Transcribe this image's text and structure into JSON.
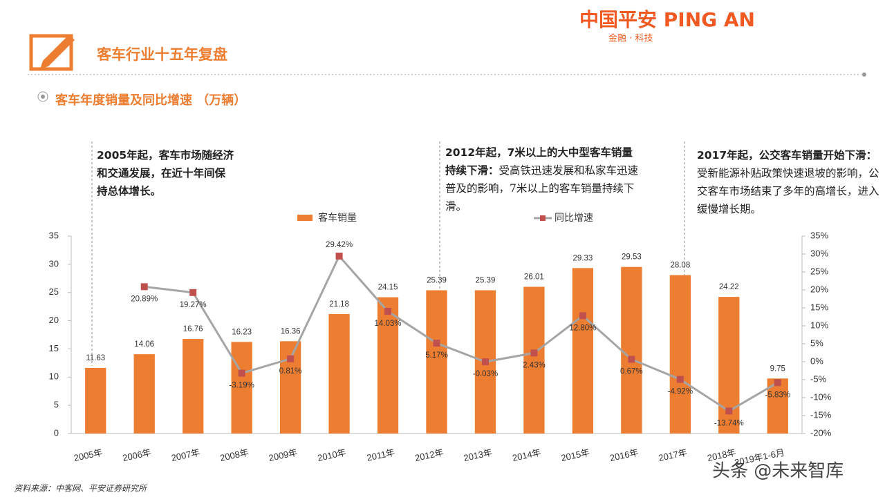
{
  "header": {
    "title": "客车行业十五年复盘",
    "logo": "中国平安 PING AN",
    "logo_sub": "金融 · 科技"
  },
  "subtitle": "客车年度销量及同比增速 （万辆）",
  "annotations": [
    {
      "bold": "2005年起，客车市场随经济和交通发展，在近十年间保持总体增长。"
    },
    {
      "bold": "2012年起，7米以上的大中型客车销量持续下滑：",
      "text": "受高铁迅速发展和私家车迅速普及的影响，7米以上的客车销量持续下滑。"
    },
    {
      "bold": "2017年起，公交客车销量开始下滑：",
      "text": "受新能源补贴政策快速退坡的影响，公交客车市场结束了多年的高增长，进入缓慢增长期。"
    }
  ],
  "source": "资料来源：中客网、平安证券研究所",
  "watermark": "头条 @未来智库",
  "chart_data": {
    "type": "bar",
    "categories": [
      "2005年",
      "2006年",
      "2007年",
      "2008年",
      "2009年",
      "2010年",
      "2011年",
      "2012年",
      "2013年",
      "2014年",
      "2015年",
      "2016年",
      "2017年",
      "2018年",
      "2019年1-6月"
    ],
    "series": [
      {
        "name": "客车销量",
        "type": "bar",
        "color": "#ED7D31",
        "values": [
          11.63,
          14.06,
          16.76,
          16.23,
          16.36,
          21.18,
          24.15,
          25.39,
          25.39,
          26.01,
          29.33,
          29.53,
          28.08,
          24.22,
          9.75
        ]
      },
      {
        "name": "同比增速",
        "type": "line",
        "axis": "y2",
        "color": "#A5A5A5",
        "marker_color": "#C0504D",
        "values": [
          null,
          20.89,
          19.27,
          -3.19,
          0.81,
          29.42,
          14.03,
          5.17,
          -0.03,
          2.43,
          12.8,
          0.67,
          -4.92,
          -13.74,
          -5.83
        ],
        "value_labels": [
          null,
          "20.89%",
          "19.27%",
          "-3.19%",
          "0.81%",
          "29.42%",
          "14.03%",
          "5.17%",
          "-0.03%",
          "2.43%",
          "12.80%",
          "0.67%",
          "-4.92%",
          "-13.74%",
          "-5.83%"
        ]
      }
    ],
    "ylim": [
      0,
      35
    ],
    "yticks": [
      0,
      5,
      10,
      15,
      20,
      25,
      30,
      35
    ],
    "y2lim": [
      -20,
      35
    ],
    "y2ticks": [
      {
        "value": -20,
        "label": "-20%"
      },
      {
        "value": -15,
        "label": "-15%"
      },
      {
        "value": -10,
        "label": "-10%"
      },
      {
        "value": -5,
        "label": "-5%"
      },
      {
        "value": 0,
        "label": "0%"
      },
      {
        "value": 5,
        "label": "5%"
      },
      {
        "value": 10,
        "label": "10%"
      },
      {
        "value": 15,
        "label": "15%"
      },
      {
        "value": 20,
        "label": "20%"
      },
      {
        "value": 25,
        "label": "25%"
      },
      {
        "value": 30,
        "label": "30%"
      },
      {
        "value": 35,
        "label": "35%"
      }
    ]
  }
}
